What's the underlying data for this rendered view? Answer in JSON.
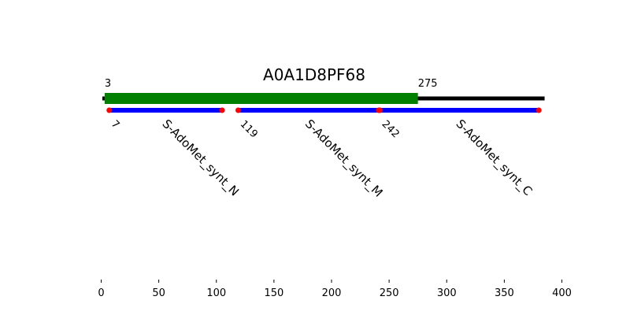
{
  "title": "A0A1D8PF68",
  "protein": {
    "start": 1,
    "end": 385
  },
  "region": {
    "start": 3,
    "end": 275,
    "start_label": "3",
    "end_label": "275",
    "color": "#008000"
  },
  "domains": [
    {
      "name": "S-AdoMet_synt_N",
      "start": 7,
      "end": 105,
      "start_label": "7"
    },
    {
      "name": "S-AdoMet_synt_M",
      "start": 119,
      "end": 241,
      "start_label": "119"
    },
    {
      "name": "S-AdoMet_synt_C",
      "start": 242,
      "end": 380,
      "start_label": "242"
    }
  ],
  "domain_color": "#0000ff",
  "endpoint_color": "#ff0000",
  "backbone_color": "#000000",
  "x_axis": {
    "range": [
      0,
      400
    ],
    "ticks": [
      "0",
      "50",
      "100",
      "150",
      "200",
      "250",
      "300",
      "350",
      "400"
    ]
  }
}
